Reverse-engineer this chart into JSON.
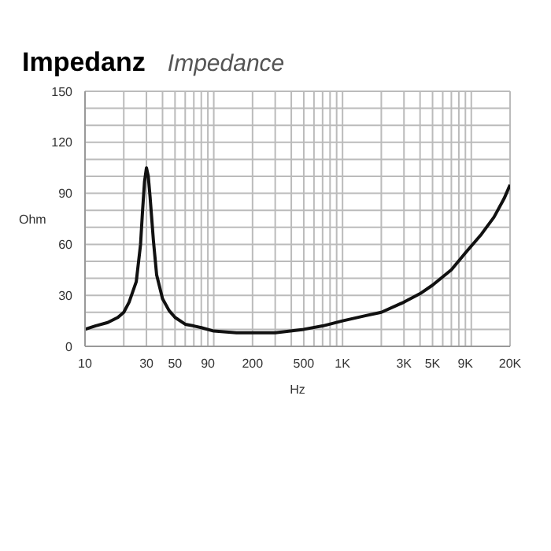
{
  "chart_data": {
    "type": "line",
    "title": "Impedanz",
    "subtitle": "Impedance",
    "xlabel": "Hz",
    "ylabel": "Ohm",
    "log": "x",
    "grid": true,
    "marker": "none",
    "line_style": "solid",
    "x": [
      10,
      12,
      15,
      18,
      20,
      22,
      25,
      27,
      28,
      29,
      30,
      31,
      32,
      34,
      36,
      40,
      45,
      50,
      60,
      70,
      80,
      100,
      150,
      200,
      300,
      500,
      700,
      1000,
      1500,
      2000,
      3000,
      4000,
      5000,
      7000,
      9000,
      12000,
      15000,
      18000,
      20000
    ],
    "series": [
      {
        "color": "#111111",
        "values": [
          10,
          12,
          14,
          17,
          20,
          26,
          38,
          60,
          80,
          97,
          105,
          100,
          88,
          62,
          42,
          28,
          21,
          17,
          13,
          12,
          11,
          9,
          8,
          8,
          8,
          10,
          12,
          15,
          18,
          20,
          26,
          31,
          36,
          45,
          55,
          66,
          76,
          87,
          95
        ]
      }
    ],
    "xlim": [
      10,
      20000
    ],
    "xticks": [
      10,
      {
        "value": 20,
        "label": null
      },
      30,
      {
        "value": 40,
        "label": null
      },
      50,
      {
        "value": 60,
        "label": null
      },
      {
        "value": 70,
        "label": null
      },
      {
        "value": 80,
        "label": null
      },
      90,
      {
        "value": 100,
        "label": null
      },
      200,
      {
        "value": 300,
        "label": null
      },
      {
        "value": 400,
        "label": null
      },
      500,
      {
        "value": 600,
        "label": null
      },
      {
        "value": 700,
        "label": null
      },
      {
        "value": 800,
        "label": null
      },
      {
        "value": 900,
        "label": null
      },
      {
        "value": 1000,
        "label": "1K"
      },
      {
        "value": 2000,
        "label": null
      },
      {
        "value": 3000,
        "label": "3K"
      },
      {
        "value": 4000,
        "label": null
      },
      {
        "value": 5000,
        "label": "5K"
      },
      {
        "value": 6000,
        "label": null
      },
      {
        "value": 7000,
        "label": null
      },
      {
        "value": 8000,
        "label": null
      },
      {
        "value": 9000,
        "label": "9K"
      },
      {
        "value": 10000,
        "label": null
      },
      {
        "value": 20000,
        "label": "20K"
      }
    ],
    "ylim": [
      0,
      150
    ],
    "yticks": [
      0,
      {
        "value": 10,
        "label": null
      },
      {
        "value": 20,
        "label": null
      },
      30,
      {
        "value": 40,
        "label": null
      },
      {
        "value": 50,
        "label": null
      },
      60,
      {
        "value": 70,
        "label": null
      },
      {
        "value": 80,
        "label": null
      },
      90,
      {
        "value": 100,
        "label": null
      },
      {
        "value": 110,
        "label": null
      },
      120,
      {
        "value": 130,
        "label": null
      },
      {
        "value": 140,
        "label": null
      },
      150
    ]
  }
}
